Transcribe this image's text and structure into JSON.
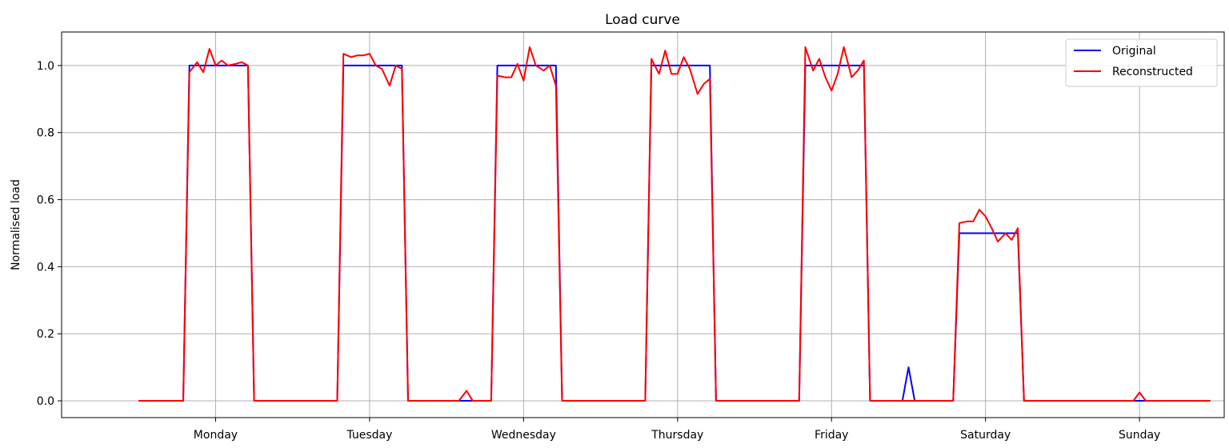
{
  "chart_data": {
    "type": "line",
    "title": "Load curve",
    "xlabel": "",
    "ylabel": "Normalised load",
    "ylim": [
      -0.05,
      1.1
    ],
    "xlim": [
      -0.5,
      7.05
    ],
    "grid": true,
    "legend_placement": "top-right",
    "x_tick_labels": [
      "Monday",
      "Tuesday",
      "Wednesday",
      "Thursday",
      "Friday",
      "Saturday",
      "Sunday"
    ],
    "x_tick_positions": [
      0.5,
      1.5,
      2.5,
      3.5,
      4.5,
      5.5,
      6.5
    ],
    "y_ticks": [
      0.0,
      0.2,
      0.4,
      0.6,
      0.8,
      1.0
    ],
    "y_tick_labels": [
      "0.0",
      "0.2",
      "0.4",
      "0.6",
      "0.8",
      "1.0"
    ],
    "series": [
      {
        "name": "Original",
        "color": "#0000ff",
        "points": [
          [
            0.0,
            0.0
          ],
          [
            0.29,
            0.0
          ],
          [
            0.33,
            1.0
          ],
          [
            0.71,
            1.0
          ],
          [
            0.75,
            0.0
          ],
          [
            1.29,
            0.0
          ],
          [
            1.33,
            1.0
          ],
          [
            1.71,
            1.0
          ],
          [
            1.75,
            0.0
          ],
          [
            2.29,
            0.0
          ],
          [
            2.33,
            1.0
          ],
          [
            2.71,
            1.0
          ],
          [
            2.75,
            0.0
          ],
          [
            3.29,
            0.0
          ],
          [
            3.33,
            1.0
          ],
          [
            3.71,
            1.0
          ],
          [
            3.75,
            0.0
          ],
          [
            4.29,
            0.0
          ],
          [
            4.33,
            1.0
          ],
          [
            4.71,
            1.0
          ],
          [
            4.75,
            0.0
          ],
          [
            4.96,
            0.0
          ],
          [
            5.0,
            0.1
          ],
          [
            5.04,
            0.0
          ],
          [
            5.29,
            0.0
          ],
          [
            5.33,
            0.5
          ],
          [
            5.71,
            0.5
          ],
          [
            5.75,
            0.0
          ],
          [
            6.96,
            0.0
          ]
        ]
      },
      {
        "name": "Reconstructed",
        "color": "#ff0000",
        "points": [
          [
            0.0,
            0.0
          ],
          [
            0.29,
            0.0
          ],
          [
            0.33,
            0.98
          ],
          [
            0.38,
            1.01
          ],
          [
            0.42,
            0.98
          ],
          [
            0.46,
            1.05
          ],
          [
            0.5,
            1.0
          ],
          [
            0.54,
            1.015
          ],
          [
            0.58,
            1.0
          ],
          [
            0.63,
            1.005
          ],
          [
            0.67,
            1.01
          ],
          [
            0.71,
            1.0
          ],
          [
            0.75,
            0.0
          ],
          [
            1.29,
            0.0
          ],
          [
            1.33,
            1.035
          ],
          [
            1.38,
            1.025
          ],
          [
            1.42,
            1.03
          ],
          [
            1.46,
            1.03
          ],
          [
            1.5,
            1.035
          ],
          [
            1.54,
            1.0
          ],
          [
            1.58,
            0.99
          ],
          [
            1.63,
            0.94
          ],
          [
            1.67,
            1.0
          ],
          [
            1.71,
            0.99
          ],
          [
            1.75,
            0.0
          ],
          [
            2.08,
            0.0
          ],
          [
            2.13,
            0.03
          ],
          [
            2.17,
            0.0
          ],
          [
            2.29,
            0.0
          ],
          [
            2.33,
            0.97
          ],
          [
            2.38,
            0.965
          ],
          [
            2.42,
            0.965
          ],
          [
            2.46,
            1.005
          ],
          [
            2.5,
            0.955
          ],
          [
            2.54,
            1.055
          ],
          [
            2.58,
            1.0
          ],
          [
            2.63,
            0.985
          ],
          [
            2.67,
            1.0
          ],
          [
            2.71,
            0.94
          ],
          [
            2.75,
            0.0
          ],
          [
            3.29,
            0.0
          ],
          [
            3.33,
            1.02
          ],
          [
            3.38,
            0.975
          ],
          [
            3.42,
            1.045
          ],
          [
            3.46,
            0.975
          ],
          [
            3.5,
            0.975
          ],
          [
            3.54,
            1.025
          ],
          [
            3.58,
            0.99
          ],
          [
            3.63,
            0.915
          ],
          [
            3.67,
            0.945
          ],
          [
            3.71,
            0.96
          ],
          [
            3.75,
            0.0
          ],
          [
            4.29,
            0.0
          ],
          [
            4.33,
            1.055
          ],
          [
            4.38,
            0.985
          ],
          [
            4.42,
            1.02
          ],
          [
            4.46,
            0.965
          ],
          [
            4.5,
            0.925
          ],
          [
            4.54,
            0.975
          ],
          [
            4.58,
            1.055
          ],
          [
            4.63,
            0.965
          ],
          [
            4.67,
            0.985
          ],
          [
            4.71,
            1.015
          ],
          [
            4.75,
            0.0
          ],
          [
            5.29,
            0.0
          ],
          [
            5.33,
            0.53
          ],
          [
            5.38,
            0.535
          ],
          [
            5.42,
            0.535
          ],
          [
            5.46,
            0.57
          ],
          [
            5.5,
            0.55
          ],
          [
            5.54,
            0.515
          ],
          [
            5.58,
            0.475
          ],
          [
            5.63,
            0.5
          ],
          [
            5.67,
            0.48
          ],
          [
            5.71,
            0.515
          ],
          [
            5.75,
            0.0
          ],
          [
            6.46,
            0.0
          ],
          [
            6.5,
            0.025
          ],
          [
            6.54,
            0.0
          ],
          [
            6.96,
            0.0
          ]
        ]
      }
    ]
  }
}
